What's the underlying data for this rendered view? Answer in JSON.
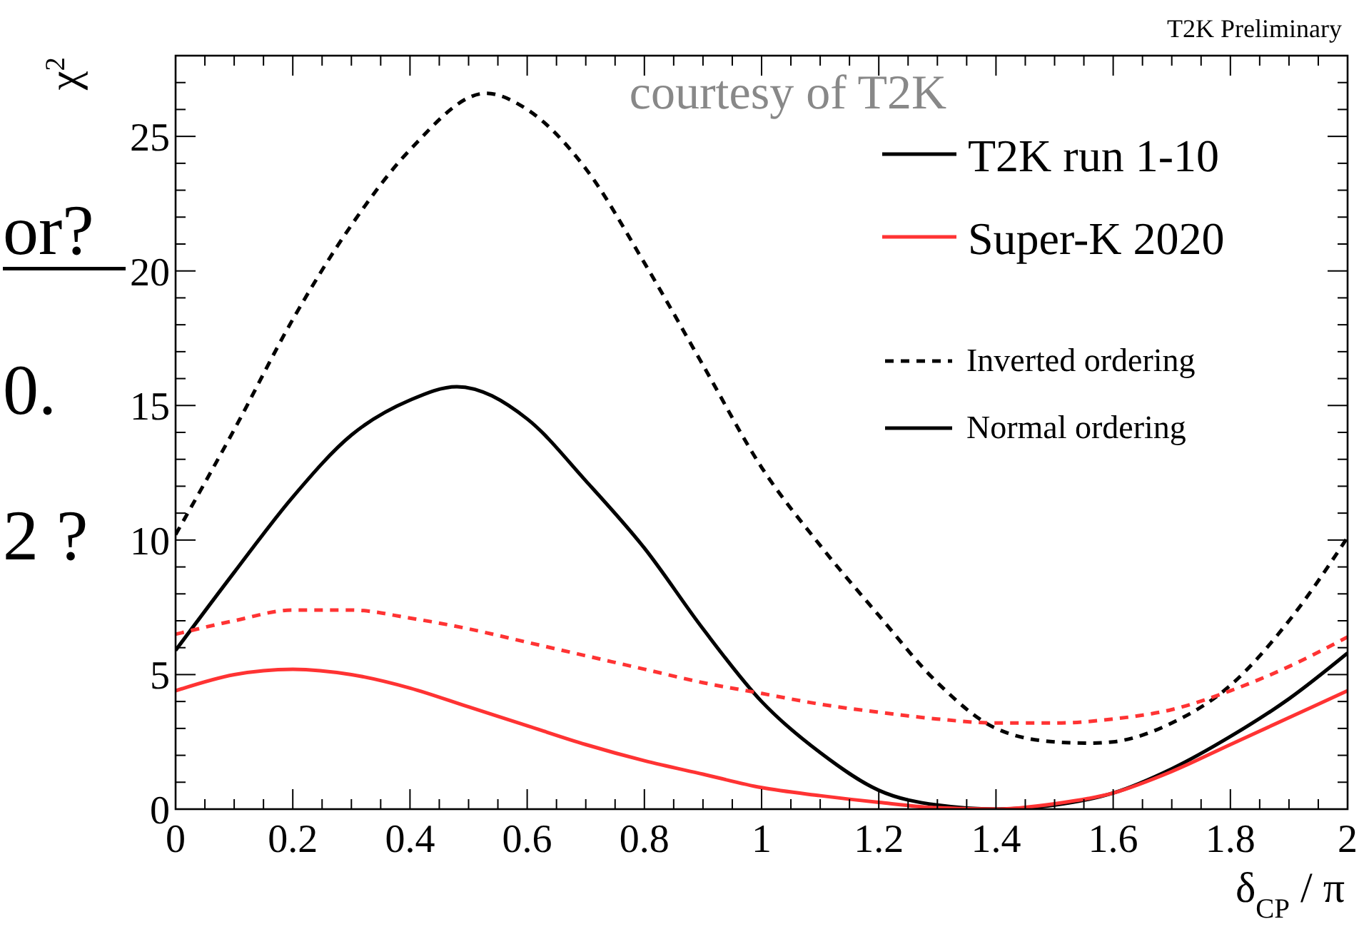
{
  "chart_data": {
    "type": "line",
    "xlabel": "δ$_{CP}$ / π",
    "ylabel": "χ$^{2}$",
    "annotations": [
      "T2K Preliminary",
      "courtesy of T2K",
      "Inverted ordering",
      "Normal ordering",
      "or?",
      "0.",
      "2 ?"
    ],
    "x": [
      0,
      0.1,
      0.2,
      0.3,
      0.4,
      0.5,
      0.6,
      0.7,
      0.8,
      0.9,
      1.0,
      1.1,
      1.2,
      1.3,
      1.4,
      1.5,
      1.6,
      1.7,
      1.8,
      1.9,
      2.0
    ],
    "series": [
      {
        "color": "#000000",
        "line_style": "dashed",
        "x": [
          0,
          0.1,
          0.2,
          0.3,
          0.4,
          0.53,
          0.6,
          0.7,
          0.8,
          0.9,
          1.0,
          1.1,
          1.2,
          1.3,
          1.4,
          1.5,
          1.56,
          1.6,
          1.7,
          1.8,
          1.9,
          2.0
        ],
        "values": [
          10.2,
          14.1,
          18.2,
          21.7,
          24.5,
          26.6,
          26.0,
          23.8,
          20.3,
          16.5,
          12.7,
          9.8,
          7.2,
          4.7,
          3.0,
          2.5,
          2.45,
          2.5,
          3.2,
          4.6,
          7.0,
          10.1
        ]
      },
      {
        "name": "T2K run 1-10",
        "color": "#000000",
        "line_style": "solid",
        "x": [
          0,
          0.1,
          0.2,
          0.3,
          0.4,
          0.48,
          0.6,
          0.7,
          0.8,
          0.9,
          1.0,
          1.1,
          1.2,
          1.3,
          1.4,
          1.5,
          1.6,
          1.7,
          1.8,
          1.9,
          2.0
        ],
        "values": [
          5.9,
          8.8,
          11.6,
          13.9,
          15.2,
          15.7,
          14.5,
          12.2,
          9.7,
          6.7,
          4.0,
          2.1,
          0.7,
          0.15,
          0,
          0.15,
          0.6,
          1.5,
          2.7,
          4.1,
          5.8
        ]
      },
      {
        "color": "#ff3333",
        "line_style": "dashed",
        "values": [
          6.5,
          7.0,
          7.4,
          7.4,
          7.1,
          6.7,
          6.2,
          5.7,
          5.2,
          4.7,
          4.3,
          3.9,
          3.6,
          3.35,
          3.2,
          3.2,
          3.35,
          3.7,
          4.4,
          5.3,
          6.4
        ]
      },
      {
        "name": "Super-K 2020",
        "color": "#ff3333",
        "line_style": "solid",
        "values": [
          4.4,
          5.0,
          5.2,
          5.0,
          4.5,
          3.8,
          3.1,
          2.4,
          1.8,
          1.3,
          0.8,
          0.5,
          0.25,
          0.05,
          0,
          0.2,
          0.6,
          1.4,
          2.4,
          3.4,
          4.4
        ]
      }
    ],
    "xlim": [
      0,
      2
    ],
    "ylim": [
      0,
      28
    ],
    "xticks": [
      0,
      {
        "value": 0.05,
        "label": null
      },
      {
        "value": 0.1,
        "label": null
      },
      {
        "value": 0.15,
        "label": null
      },
      0.2,
      {
        "value": 0.25,
        "label": null
      },
      {
        "value": 0.3,
        "label": null
      },
      {
        "value": 0.35,
        "label": null
      },
      0.4,
      {
        "value": 0.45,
        "label": null
      },
      {
        "value": 0.5,
        "label": null
      },
      {
        "value": 0.55,
        "label": null
      },
      0.6,
      {
        "value": 0.65,
        "label": null
      },
      {
        "value": 0.7,
        "label": null
      },
      {
        "value": 0.75,
        "label": null
      },
      0.8,
      {
        "value": 0.85,
        "label": null
      },
      {
        "value": 0.9,
        "label": null
      },
      {
        "value": 0.95,
        "label": null
      },
      1,
      {
        "value": 1.05,
        "label": null
      },
      {
        "value": 1.1,
        "label": null
      },
      {
        "value": 1.15,
        "label": null
      },
      1.2,
      {
        "value": 1.25,
        "label": null
      },
      {
        "value": 1.3,
        "label": null
      },
      {
        "value": 1.35,
        "label": null
      },
      1.4,
      {
        "value": 1.45,
        "label": null
      },
      {
        "value": 1.5,
        "label": null
      },
      {
        "value": 1.55,
        "label": null
      },
      1.6,
      {
        "value": 1.65,
        "label": null
      },
      {
        "value": 1.7,
        "label": null
      },
      {
        "value": 1.75,
        "label": null
      },
      1.8,
      {
        "value": 1.85,
        "label": null
      },
      {
        "value": 1.9,
        "label": null
      },
      {
        "value": 1.95,
        "label": null
      },
      2
    ],
    "yticks": [
      0,
      {
        "value": 1,
        "label": null
      },
      {
        "value": 2,
        "label": null
      },
      {
        "value": 3,
        "label": null
      },
      {
        "value": 4,
        "label": null
      },
      5,
      {
        "value": 6,
        "label": null
      },
      {
        "value": 7,
        "label": null
      },
      {
        "value": 8,
        "label": null
      },
      {
        "value": 9,
        "label": null
      },
      10,
      {
        "value": 11,
        "label": null
      },
      {
        "value": 12,
        "label": null
      },
      {
        "value": 13,
        "label": null
      },
      {
        "value": 14,
        "label": null
      },
      15,
      {
        "value": 16,
        "label": null
      },
      {
        "value": 17,
        "label": null
      },
      {
        "value": 18,
        "label": null
      },
      {
        "value": 19,
        "label": null
      },
      20,
      {
        "value": 21,
        "label": null
      },
      {
        "value": 22,
        "label": null
      },
      {
        "value": 23,
        "label": null
      },
      {
        "value": 24,
        "label": null
      },
      25,
      {
        "value": 26,
        "label": null
      },
      {
        "value": 27,
        "label": null
      }
    ],
    "grid": false,
    "legend": "top right"
  }
}
